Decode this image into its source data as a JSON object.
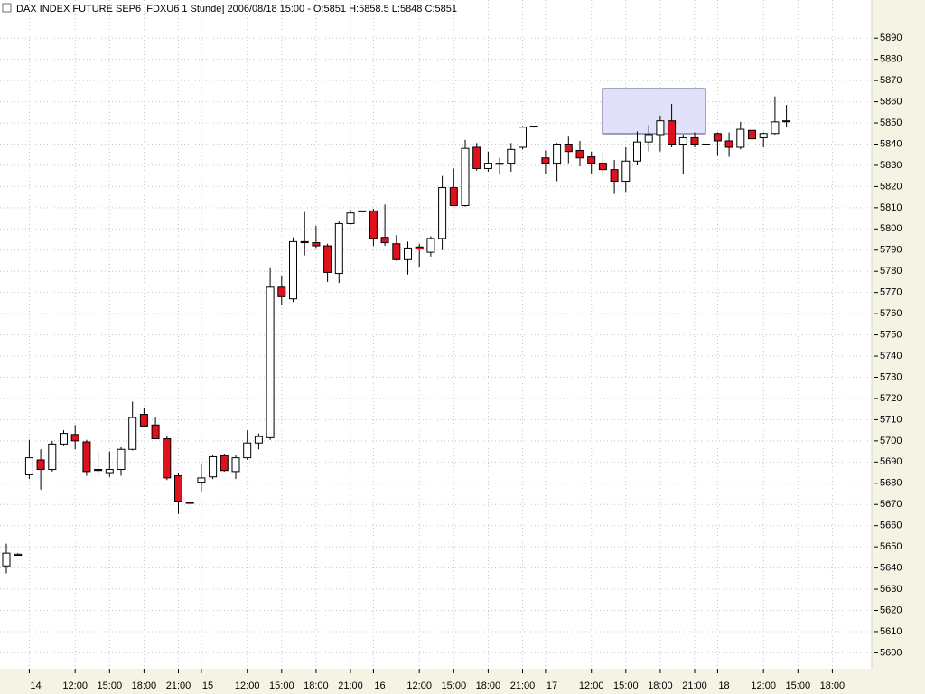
{
  "chart_data": {
    "type": "candlestick",
    "title": "DAX INDEX FUTURE SEP6 [FDXU6  1 Stunde] 2006/08/18 15:00 - O:5851 H:5858.5 L:5848 C:5851",
    "categories": [
      null,
      null,
      "14",
      null,
      null,
      null,
      "12:00",
      null,
      null,
      "15:00",
      null,
      null,
      "18:00",
      null,
      null,
      "21:00",
      null,
      "15",
      null,
      null,
      null,
      "12:00",
      null,
      null,
      "15:00",
      null,
      null,
      "18:00",
      null,
      null,
      "21:00",
      null,
      "16",
      null,
      null,
      null,
      "12:00",
      null,
      null,
      "15:00",
      null,
      null,
      "18:00",
      null,
      null,
      "21:00",
      null,
      "17",
      null,
      null,
      null,
      "12:00",
      null,
      null,
      "15:00",
      null,
      null,
      "18:00",
      null,
      null,
      "21:00",
      null,
      "18",
      null,
      null,
      null,
      "12:00",
      null,
      null,
      "15:00",
      null,
      null,
      "18:00"
    ],
    "open": [
      5641,
      5646,
      5684,
      5691,
      5686.5,
      5698.5,
      5703,
      5699.5,
      5686.5,
      5685,
      5686.5,
      5696,
      5712.5,
      5707.5,
      5701,
      5683.5,
      5671,
      5680.5,
      5683,
      5693,
      5685.5,
      5692,
      5699,
      5701.5,
      5772.5,
      5767,
      5794,
      5793.5,
      5792,
      5779,
      5802.5,
      5808.5,
      5808.5,
      5796,
      5793,
      5785.5,
      5791.5,
      5789,
      5795.5,
      5819.5,
      5811,
      5838.5,
      5828.5,
      5830.5,
      5831,
      5838.5,
      5848.5,
      5833.5,
      5831,
      5840,
      5837,
      5834,
      5831,
      5828,
      5822.5,
      5832,
      5841,
      5844.5,
      5851,
      5840,
      5843,
      5840,
      5845,
      5841.5,
      5838.5,
      5846.5,
      5843,
      5845,
      5851,
      null,
      null,
      null,
      null
    ],
    "high": [
      5651.5,
      5647,
      5700.5,
      5696,
      5700,
      5705,
      5707.5,
      5700.5,
      5695,
      5695,
      5697,
      5718.5,
      5715.5,
      5711,
      5702.5,
      5685,
      5671,
      5689,
      5693.5,
      5694,
      5693.5,
      5705,
      5703.5,
      5781.5,
      5778,
      5796,
      5808,
      5801.5,
      5793,
      5803.5,
      5809,
      5808.5,
      5809.5,
      5811.5,
      5797,
      5794,
      5793,
      5796.5,
      5825,
      5828.5,
      5842,
      5840.5,
      5836.5,
      5833.5,
      5840.5,
      5848.5,
      5848.5,
      5837,
      5840.5,
      5843.5,
      5841.5,
      5836.5,
      5836,
      5832.5,
      5838.5,
      5846,
      5849,
      5853.5,
      5859,
      5844.5,
      5845.5,
      5840,
      5845.5,
      5845.5,
      5850.5,
      5852.5,
      5845.5,
      5862.5,
      5858.5,
      null,
      null,
      null,
      null
    ],
    "low": [
      5637.5,
      5646,
      5682,
      5677,
      5685.5,
      5697.5,
      5696,
      5683.5,
      5683.5,
      5683,
      5683.5,
      5695.5,
      5706.5,
      5701,
      5681.5,
      5665.5,
      5670.5,
      5676,
      5682,
      5685.5,
      5682,
      5691,
      5696,
      5700.5,
      5764,
      5765.5,
      5787.5,
      5791,
      5775,
      5774.5,
      5802,
      5808.5,
      5792,
      5792,
      5785,
      5778.5,
      5782,
      5787,
      5790,
      5811,
      5810.5,
      5827.5,
      5827,
      5825.5,
      5827,
      5837.5,
      5848.5,
      5826,
      5822.5,
      5831,
      5829.5,
      5826,
      5825,
      5816.5,
      5817,
      5830,
      5836.5,
      5836.5,
      5838.5,
      5826,
      5838.5,
      5840,
      5834.5,
      5834,
      5837.5,
      5827.5,
      5838.5,
      5844.5,
      5848,
      null,
      null,
      null,
      null
    ],
    "close": [
      5647,
      5646.5,
      5692,
      5686.5,
      5698.5,
      5703.5,
      5700,
      5685.5,
      5686,
      5686.5,
      5696,
      5711,
      5707,
      5701,
      5682.5,
      5671.5,
      5670.5,
      5682.5,
      5692.5,
      5686,
      5692,
      5699,
      5702,
      5772.5,
      5768,
      5794,
      5793.5,
      5792,
      5779.5,
      5802.5,
      5807.5,
      5808.5,
      5795.5,
      5793.5,
      5785.5,
      5791,
      5790.5,
      5795.5,
      5819.5,
      5811,
      5838,
      5828.5,
      5831,
      5831,
      5837.5,
      5848,
      5848.5,
      5831,
      5840,
      5836.5,
      5833.5,
      5831,
      5828,
      5822.5,
      5832,
      5841,
      5844.5,
      5851,
      5840,
      5843,
      5840,
      5840,
      5841.5,
      5838.5,
      5847,
      5842.5,
      5845,
      5850.5,
      5851,
      null,
      null,
      null,
      null
    ],
    "up_color": "#ffffff",
    "down_color": "#e0101c",
    "ylim": [
      5592.5,
      5908
    ],
    "yticks": [
      5600,
      5610,
      5620,
      5630,
      5640,
      5650,
      5660,
      5670,
      5680,
      5690,
      5700,
      5710,
      5720,
      5730,
      5740,
      5750,
      5760,
      5770,
      5780,
      5790,
      5800,
      5810,
      5820,
      5830,
      5840,
      5850,
      5860,
      5870,
      5880,
      5890
    ],
    "grid": true
  }
}
